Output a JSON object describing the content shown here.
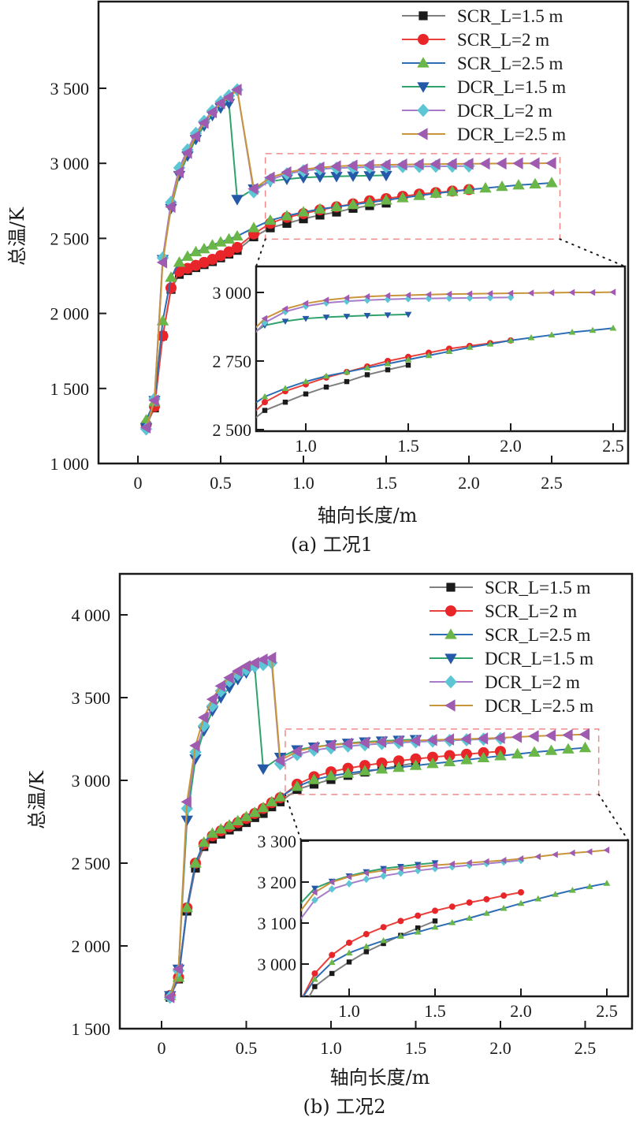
{
  "chart_data": [
    {
      "type": "line",
      "panel": "a",
      "caption": "(a) 工况1",
      "xlabel": "轴向长度/m",
      "ylabel": "总温/K",
      "xlim": [
        -0.25,
        2.75
      ],
      "ylim": [
        1000,
        4050
      ],
      "xticks": [
        0,
        0.5,
        1.0,
        1.5,
        2.0,
        2.5
      ],
      "xtick_labels": [
        "0",
        "0.5",
        "1.0",
        "1.5",
        "2.0",
        "2.5"
      ],
      "yticks": [
        1000,
        1500,
        2000,
        2500,
        3000,
        3500
      ],
      "ytick_labels": [
        "1 000",
        "1 500",
        "2 000",
        "2 500",
        "3 000",
        "3 500"
      ],
      "legend_position": "top-right",
      "zoom_box": {
        "xlim": [
          0.77,
          2.55
        ],
        "ylim": [
          2495,
          3065
        ]
      },
      "inset": {
        "xlim": [
          0.75,
          2.55
        ],
        "ylim": [
          2500,
          3050
        ],
        "xticks": [
          1.0,
          1.5,
          2.0,
          2.5
        ],
        "xtick_labels": [
          "1.0",
          "1.5",
          "2.0",
          "2.5"
        ],
        "yticks": [
          2500,
          2750,
          3000
        ],
        "ytick_labels": [
          "2 500",
          "2 750",
          "3 000"
        ]
      },
      "series": [
        {
          "name": "SCR_L=1.5 m",
          "line_color": "#7f7f7f",
          "marker_color": "#1a1a1a",
          "marker": "square",
          "x": [
            0.05,
            0.1,
            0.15,
            0.2,
            0.25,
            0.3,
            0.35,
            0.4,
            0.45,
            0.5,
            0.55,
            0.6,
            0.7,
            0.8,
            0.9,
            1.0,
            1.1,
            1.2,
            1.3,
            1.4,
            1.5
          ],
          "y": [
            1250,
            1370,
            1850,
            2160,
            2260,
            2285,
            2305,
            2325,
            2345,
            2370,
            2395,
            2420,
            2510,
            2570,
            2600,
            2630,
            2655,
            2675,
            2700,
            2718,
            2735
          ]
        },
        {
          "name": "SCR_L=2 m",
          "line_color": "#e8403a",
          "marker_color": "#e8262a",
          "marker": "circle",
          "x": [
            0.05,
            0.1,
            0.15,
            0.2,
            0.25,
            0.3,
            0.35,
            0.4,
            0.45,
            0.5,
            0.55,
            0.6,
            0.7,
            0.8,
            0.9,
            1.0,
            1.1,
            1.2,
            1.3,
            1.4,
            1.5,
            1.6,
            1.7,
            1.8,
            1.9,
            2.0
          ],
          "y": [
            1260,
            1380,
            1850,
            2170,
            2280,
            2300,
            2320,
            2340,
            2360,
            2385,
            2410,
            2440,
            2530,
            2600,
            2640,
            2665,
            2690,
            2710,
            2730,
            2750,
            2765,
            2780,
            2795,
            2805,
            2815,
            2825
          ]
        },
        {
          "name": "SCR_L=2.5 m",
          "line_color": "#2d6db5",
          "marker_color": "#6ab648",
          "marker": "triangle-up",
          "x": [
            0.05,
            0.1,
            0.15,
            0.2,
            0.25,
            0.3,
            0.35,
            0.4,
            0.45,
            0.5,
            0.55,
            0.6,
            0.7,
            0.8,
            0.9,
            1.0,
            1.1,
            1.2,
            1.3,
            1.4,
            1.5,
            1.6,
            1.7,
            1.8,
            1.9,
            2.0,
            2.1,
            2.2,
            2.3,
            2.4,
            2.5
          ],
          "y": [
            1290,
            1410,
            1950,
            2240,
            2340,
            2380,
            2410,
            2430,
            2455,
            2475,
            2495,
            2515,
            2570,
            2620,
            2650,
            2675,
            2695,
            2710,
            2725,
            2740,
            2755,
            2770,
            2785,
            2800,
            2812,
            2825,
            2835,
            2845,
            2855,
            2862,
            2870
          ]
        },
        {
          "name": "DCR_L=1.5 m",
          "line_color": "#2fa36b",
          "marker_color": "#2458a8",
          "marker": "triangle-down",
          "x": [
            0.05,
            0.1,
            0.15,
            0.2,
            0.25,
            0.3,
            0.35,
            0.4,
            0.45,
            0.5,
            0.55,
            0.6,
            0.7,
            0.8,
            0.9,
            1.0,
            1.1,
            1.2,
            1.3,
            1.4,
            1.5
          ],
          "y": [
            1240,
            1420,
            2360,
            2700,
            2920,
            3050,
            3160,
            3250,
            3320,
            3370,
            3400,
            2760,
            2830,
            2880,
            2895,
            2905,
            2910,
            2913,
            2916,
            2918,
            2920
          ]
        },
        {
          "name": "DCR_L=2 m",
          "line_color": "#a77bc9",
          "marker_color": "#5cc6d4",
          "marker": "diamond",
          "x": [
            0.05,
            0.1,
            0.15,
            0.2,
            0.25,
            0.3,
            0.35,
            0.4,
            0.45,
            0.5,
            0.55,
            0.6,
            0.7,
            0.8,
            0.9,
            1.0,
            1.1,
            1.2,
            1.3,
            1.4,
            1.5,
            1.6,
            1.7,
            1.8,
            1.9,
            2.0
          ],
          "y": [
            1230,
            1430,
            2370,
            2740,
            2970,
            3090,
            3200,
            3280,
            3350,
            3410,
            3450,
            3490,
            2810,
            2890,
            2930,
            2950,
            2962,
            2968,
            2972,
            2975,
            2977,
            2978,
            2979,
            2980,
            2981,
            2982
          ]
        },
        {
          "name": "DCR_L=2.5 m",
          "line_color": "#c8953a",
          "marker_color": "#9e5bb0",
          "marker": "triangle-left",
          "x": [
            0.05,
            0.1,
            0.15,
            0.2,
            0.25,
            0.3,
            0.35,
            0.4,
            0.45,
            0.5,
            0.55,
            0.6,
            0.7,
            0.8,
            0.9,
            1.0,
            1.1,
            1.2,
            1.3,
            1.4,
            1.5,
            1.6,
            1.7,
            1.8,
            1.9,
            2.0,
            2.1,
            2.2,
            2.3,
            2.4,
            2.5
          ],
          "y": [
            1240,
            1420,
            2340,
            2710,
            2940,
            3070,
            3180,
            3270,
            3340,
            3400,
            3440,
            3490,
            2830,
            2905,
            2940,
            2960,
            2972,
            2980,
            2985,
            2988,
            2990,
            2992,
            2994,
            2995,
            2996,
            2997,
            2998,
            2999,
            3000,
            3000,
            3001
          ]
        }
      ]
    },
    {
      "type": "line",
      "panel": "b",
      "caption": "(b) 工况2",
      "xlabel": "轴向长度/m",
      "ylabel": "总温/K",
      "xlim": [
        -0.25,
        2.75
      ],
      "ylim": [
        1500,
        4250
      ],
      "xticks": [
        0,
        0.5,
        1.0,
        1.5,
        2.0,
        2.5
      ],
      "xtick_labels": [
        "0",
        "0.5",
        "1.0",
        "1.5",
        "2.0",
        "2.5"
      ],
      "yticks": [
        1500,
        2000,
        2500,
        3000,
        3500,
        4000
      ],
      "ytick_labels": [
        "1 500",
        "2 000",
        "2 500",
        "3 000",
        "3 500",
        "4 000"
      ],
      "legend_position": "top-right",
      "zoom_box": {
        "xlim": [
          0.73,
          2.58
        ],
        "ylim": [
          2915,
          3310
        ]
      },
      "inset": {
        "xlim": [
          0.72,
          2.57
        ],
        "ylim": [
          2920,
          3310
        ],
        "xticks": [
          1.0,
          1.5,
          2.0,
          2.5
        ],
        "xtick_labels": [
          "1.0",
          "1.5",
          "2.0",
          "2.5"
        ],
        "yticks": [
          3000,
          3100,
          3200,
          3300
        ],
        "ytick_labels": [
          "3 000",
          "3 100",
          "3 200",
          "3 300"
        ]
      },
      "series": [
        {
          "name": "SCR_L=1.5 m",
          "line_color": "#7f7f7f",
          "marker_color": "#1a1a1a",
          "marker": "square",
          "x": [
            0.05,
            0.1,
            0.15,
            0.2,
            0.25,
            0.3,
            0.35,
            0.4,
            0.45,
            0.5,
            0.55,
            0.6,
            0.65,
            0.7,
            0.8,
            0.9,
            1.0,
            1.1,
            1.2,
            1.3,
            1.4,
            1.5
          ],
          "y": [
            1690,
            1800,
            2210,
            2470,
            2600,
            2645,
            2675,
            2700,
            2720,
            2745,
            2775,
            2800,
            2840,
            2870,
            2945,
            2977,
            3005,
            3030,
            3050,
            3070,
            3088,
            3105
          ]
        },
        {
          "name": "SCR_L=2 m",
          "line_color": "#e8403a",
          "marker_color": "#e8262a",
          "marker": "circle",
          "x": [
            0.05,
            0.1,
            0.15,
            0.2,
            0.25,
            0.3,
            0.35,
            0.4,
            0.45,
            0.5,
            0.55,
            0.6,
            0.65,
            0.7,
            0.8,
            0.9,
            1.0,
            1.1,
            1.2,
            1.3,
            1.4,
            1.5,
            1.6,
            1.7,
            1.8,
            1.9,
            2.0
          ],
          "y": [
            1700,
            1810,
            2230,
            2500,
            2615,
            2665,
            2695,
            2720,
            2745,
            2770,
            2800,
            2830,
            2865,
            2895,
            2977,
            3022,
            3052,
            3073,
            3090,
            3105,
            3118,
            3130,
            3140,
            3150,
            3158,
            3167,
            3175
          ]
        },
        {
          "name": "SCR_L=2.5 m",
          "line_color": "#2d6db5",
          "marker_color": "#6ab648",
          "marker": "triangle-up",
          "x": [
            0.05,
            0.1,
            0.15,
            0.2,
            0.25,
            0.3,
            0.35,
            0.4,
            0.45,
            0.5,
            0.55,
            0.6,
            0.65,
            0.7,
            0.8,
            0.9,
            1.0,
            1.1,
            1.2,
            1.3,
            1.4,
            1.5,
            1.6,
            1.7,
            1.8,
            1.9,
            2.0,
            2.1,
            2.2,
            2.3,
            2.4,
            2.5
          ],
          "y": [
            1700,
            1810,
            2230,
            2500,
            2625,
            2680,
            2705,
            2730,
            2755,
            2780,
            2805,
            2835,
            2870,
            2900,
            2963,
            3004,
            3027,
            3043,
            3057,
            3068,
            3078,
            3090,
            3101,
            3112,
            3124,
            3136,
            3148,
            3159,
            3170,
            3180,
            3189,
            3197
          ]
        },
        {
          "name": "DCR_L=1.5 m",
          "line_color": "#2fa36b",
          "marker_color": "#2458a8",
          "marker": "triangle-down",
          "x": [
            0.05,
            0.1,
            0.15,
            0.2,
            0.25,
            0.3,
            0.35,
            0.4,
            0.45,
            0.5,
            0.55,
            0.6,
            0.7,
            0.8,
            0.9,
            1.0,
            1.1,
            1.2,
            1.3,
            1.4,
            1.5
          ],
          "y": [
            1700,
            1860,
            2760,
            3130,
            3300,
            3420,
            3500,
            3560,
            3610,
            3650,
            3680,
            3070,
            3140,
            3185,
            3202,
            3215,
            3225,
            3233,
            3238,
            3243,
            3247
          ]
        },
        {
          "name": "DCR_L=2 m",
          "line_color": "#a77bc9",
          "marker_color": "#5cc6d4",
          "marker": "diamond",
          "x": [
            0.05,
            0.1,
            0.15,
            0.2,
            0.25,
            0.3,
            0.35,
            0.4,
            0.45,
            0.5,
            0.55,
            0.6,
            0.65,
            0.7,
            0.8,
            0.9,
            1.0,
            1.1,
            1.2,
            1.3,
            1.4,
            1.5,
            1.6,
            1.7,
            1.8,
            1.9,
            2.0
          ],
          "y": [
            1690,
            1850,
            2830,
            3170,
            3330,
            3450,
            3540,
            3600,
            3640,
            3670,
            3690,
            3700,
            3710,
            3100,
            3156,
            3183,
            3196,
            3207,
            3215,
            3222,
            3228,
            3233,
            3237,
            3241,
            3245,
            3249,
            3253
          ]
        },
        {
          "name": "DCR_L=2.5 m",
          "line_color": "#c8953a",
          "marker_color": "#9e5bb0",
          "marker": "triangle-left",
          "x": [
            0.05,
            0.1,
            0.15,
            0.2,
            0.25,
            0.3,
            0.35,
            0.4,
            0.45,
            0.5,
            0.55,
            0.6,
            0.65,
            0.7,
            0.8,
            0.9,
            1.0,
            1.1,
            1.2,
            1.3,
            1.4,
            1.5,
            1.6,
            1.7,
            1.8,
            1.9,
            2.0,
            2.1,
            2.2,
            2.3,
            2.4,
            2.5
          ],
          "y": [
            1690,
            1860,
            2870,
            3210,
            3380,
            3490,
            3570,
            3620,
            3660,
            3690,
            3710,
            3730,
            3740,
            3120,
            3175,
            3200,
            3213,
            3222,
            3228,
            3233,
            3237,
            3241,
            3244,
            3247,
            3250,
            3253,
            3257,
            3262,
            3267,
            3271,
            3274,
            3278
          ]
        }
      ]
    }
  ]
}
